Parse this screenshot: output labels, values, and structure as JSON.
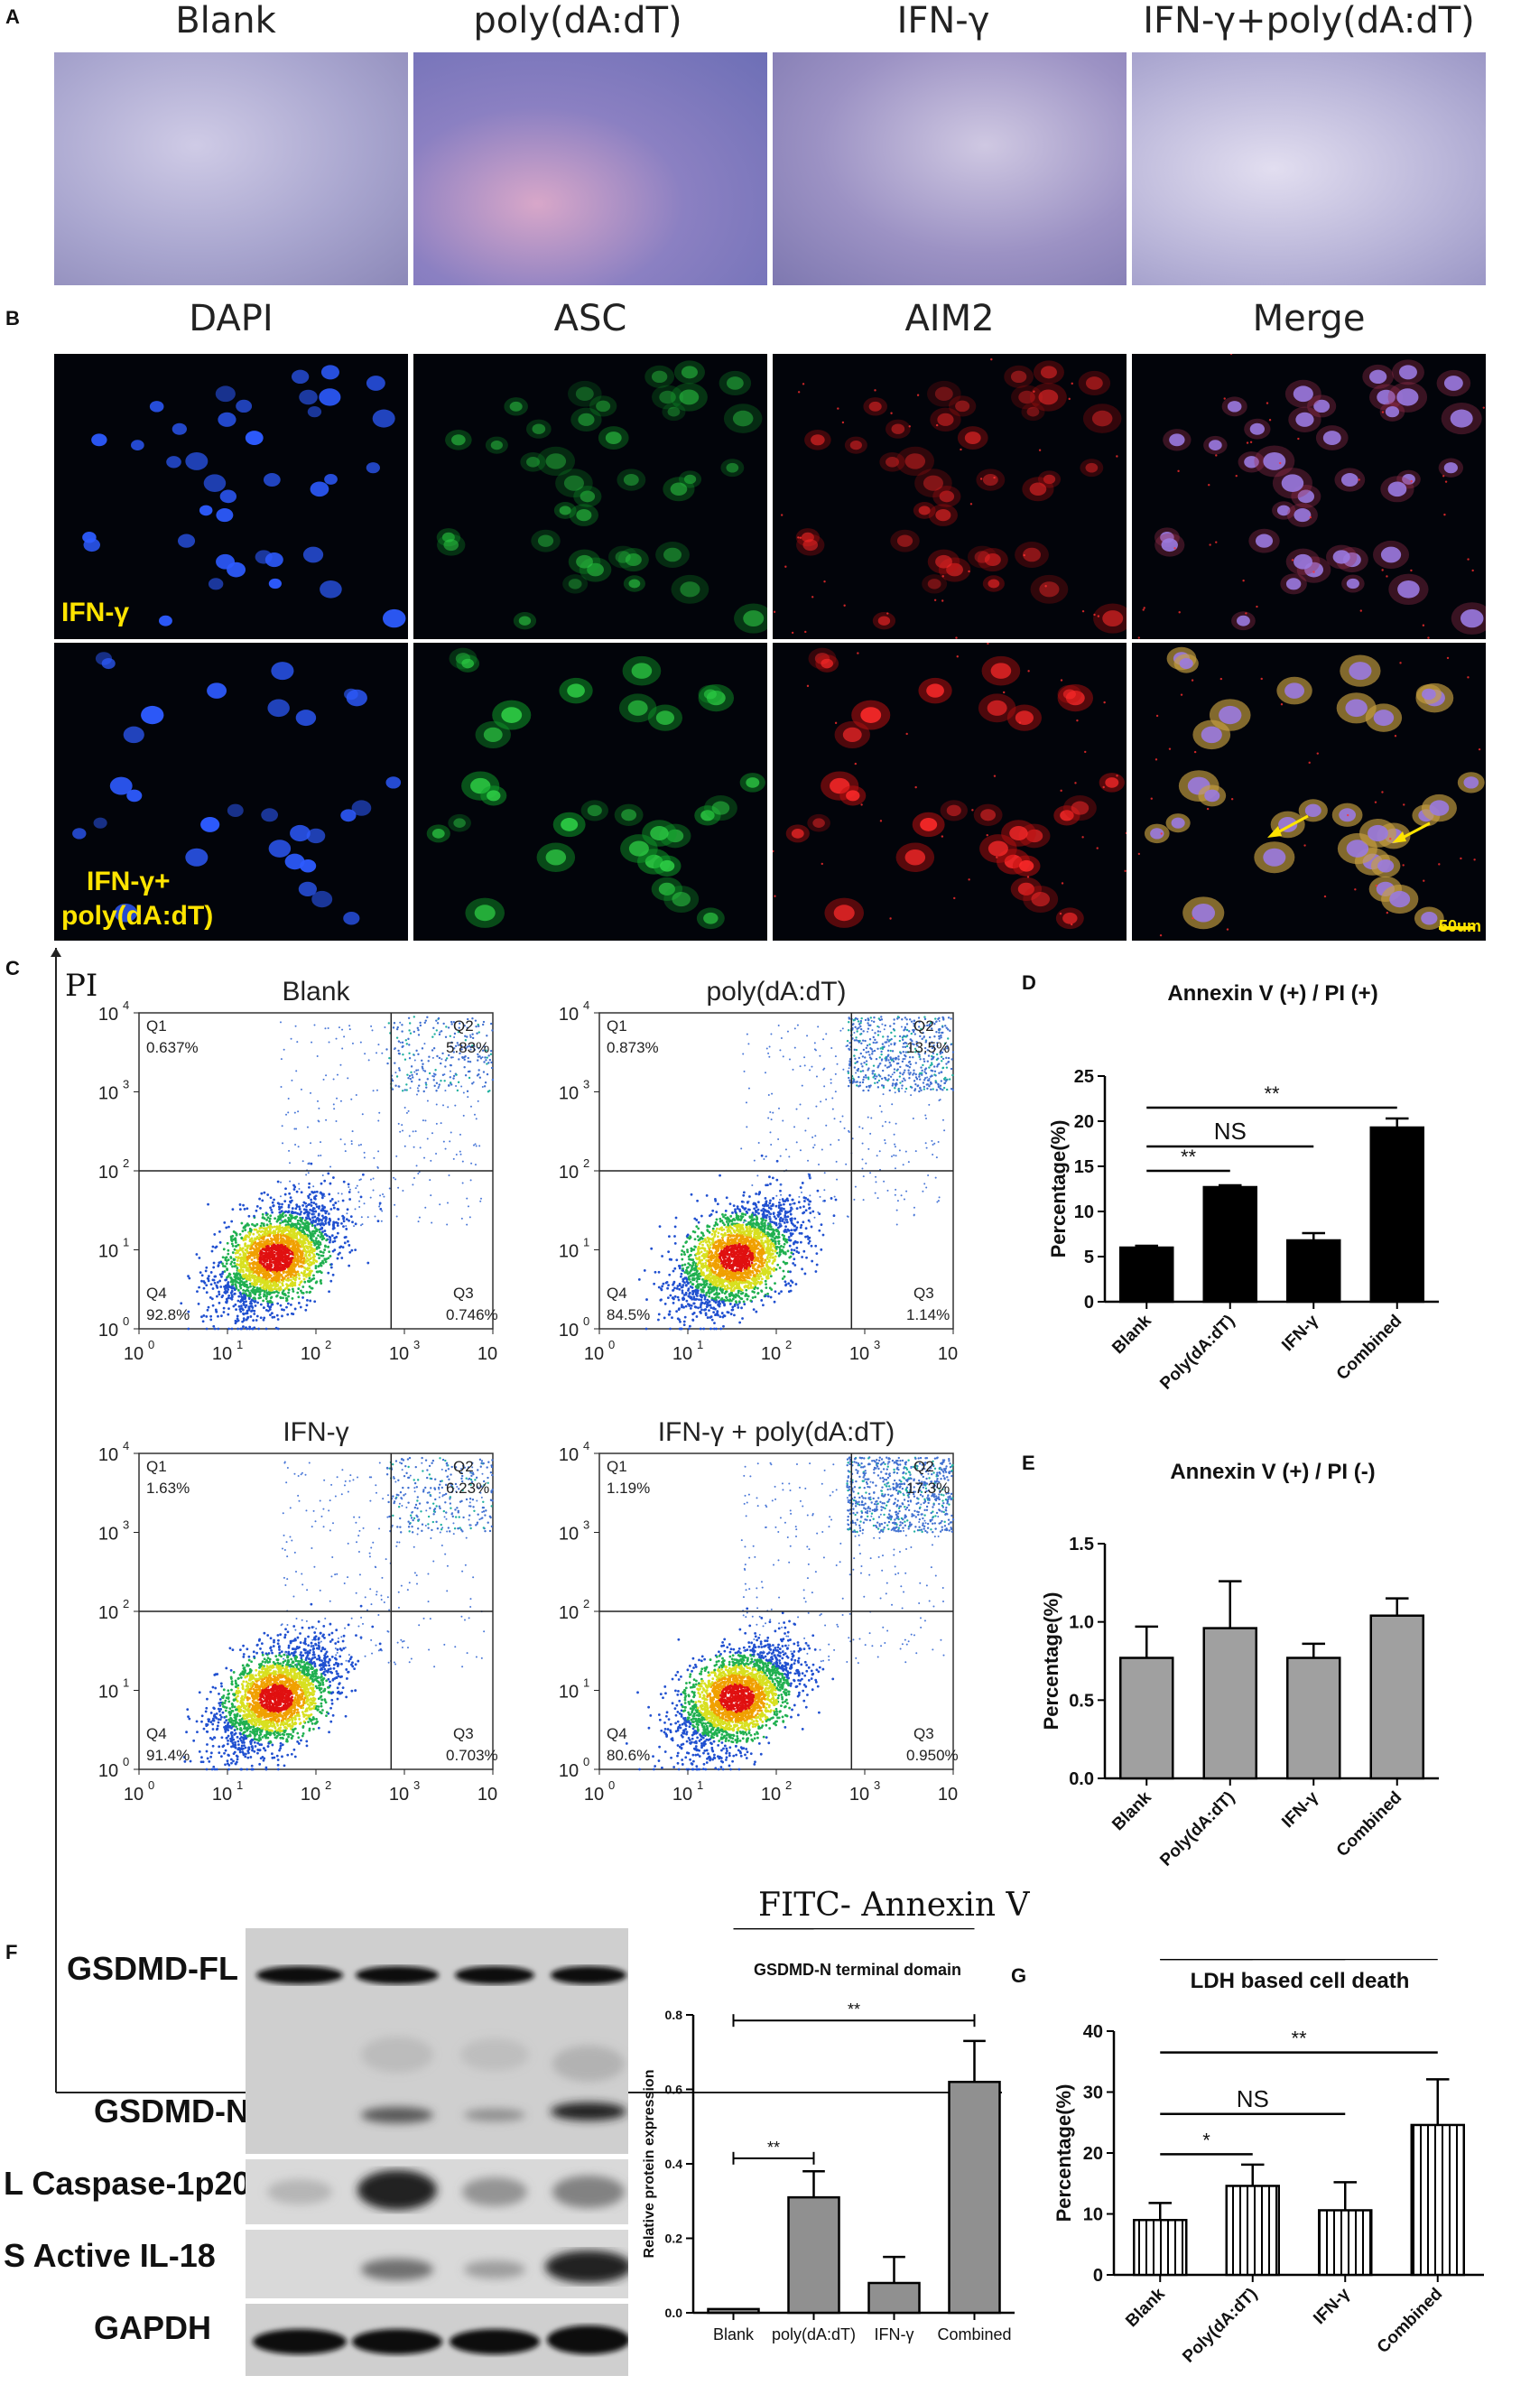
{
  "panels": {
    "A": {
      "label": "A",
      "columns": [
        "Blank",
        "poly(dA:dT)",
        "IFN-γ",
        "IFN-γ+poly(dA:dT)"
      ]
    },
    "B": {
      "label": "B",
      "columns": [
        "DAPI",
        "ASC",
        "AIM2",
        "Merge"
      ],
      "row_labels": [
        "IFN-γ",
        "IFN-γ+",
        "poly(dA:dT)"
      ],
      "scale_bar": "50um"
    },
    "C": {
      "label": "C",
      "y_axis_label": "PI",
      "x_axis_label": "FITC- Annexin V",
      "plots": [
        {
          "title": "Blank",
          "Q1": "0.637%",
          "Q2": "5.83%",
          "Q3": "0.746%",
          "Q4": "92.8%"
        },
        {
          "title": "poly(dA:dT)",
          "Q1": "0.873%",
          "Q2": "13.5%",
          "Q3": "1.14%",
          "Q4": "84.5%"
        },
        {
          "title": "IFN-γ",
          "Q1": "1.63%",
          "Q2": "6.23%",
          "Q3": "0.703%",
          "Q4": "91.4%"
        },
        {
          "title": "IFN-γ + poly(dA:dT)",
          "Q1": "1.19%",
          "Q2": "17.3%",
          "Q3": "0.950%",
          "Q4": "80.6%"
        }
      ],
      "quadrant_names": [
        "Q1",
        "Q2",
        "Q3",
        "Q4"
      ],
      "ticks": [
        "10",
        "10",
        "10",
        "10",
        "10"
      ],
      "tick_exponents": [
        "0",
        "1",
        "2",
        "3",
        "4"
      ]
    },
    "D": {
      "label": "D"
    },
    "E": {
      "label": "E"
    },
    "F": {
      "label": "F",
      "blot_labels": [
        "GSDMD-FL",
        "GSDMD-N",
        "L Caspase-1p20",
        "S  Active IL-18",
        "GAPDH"
      ]
    },
    "G": {
      "label": "G"
    }
  },
  "chart_data": [
    {
      "id": "D",
      "type": "bar",
      "title": "Annexin V (+) / PI (+)",
      "ylabel": "Percentage(%)",
      "categories": [
        "Blank",
        "Poly(dA:dT)",
        "IFN-γ",
        "Combined"
      ],
      "values": [
        6.0,
        12.7,
        6.8,
        19.3
      ],
      "errors": [
        0.2,
        0.2,
        0.8,
        1.0
      ],
      "ylim": [
        0,
        25
      ],
      "yticks": [
        0,
        5,
        10,
        15,
        20,
        25
      ],
      "fill": "#000000",
      "significance": [
        {
          "from": 0,
          "to": 1,
          "label": "**"
        },
        {
          "from": 0,
          "to": 2,
          "label": "NS"
        },
        {
          "from": 0,
          "to": 3,
          "label": "**"
        }
      ]
    },
    {
      "id": "E",
      "type": "bar",
      "title": "Annexin V (+) / PI (-)",
      "ylabel": "Percentage(%)",
      "categories": [
        "Blank",
        "Poly(dA:dT)",
        "IFN-γ",
        "Combined"
      ],
      "values": [
        0.77,
        0.96,
        0.77,
        1.04
      ],
      "errors": [
        0.2,
        0.3,
        0.09,
        0.11
      ],
      "ylim": [
        0,
        1.5
      ],
      "yticks": [
        "0.0",
        "0.5",
        "1.0",
        "1.5"
      ],
      "fill": "#a0a0a0"
    },
    {
      "id": "F",
      "type": "bar",
      "title": "GSDMD-N terminal domain",
      "ylabel": "Relative protein expression",
      "categories": [
        "Blank",
        "poly(dA:dT)",
        "IFN-γ",
        "Combined"
      ],
      "values": [
        0.01,
        0.31,
        0.08,
        0.62
      ],
      "errors": [
        0.0,
        0.07,
        0.07,
        0.11
      ],
      "ylim": [
        0,
        0.8
      ],
      "yticks": [
        "0.0",
        "0.2",
        "0.4",
        "0.6",
        "0.8"
      ],
      "fill": "#909090",
      "significance": [
        {
          "from": 0,
          "to": 1,
          "label": "**"
        },
        {
          "from": 0,
          "to": 3,
          "label": "**"
        }
      ]
    },
    {
      "id": "G",
      "type": "bar",
      "title": "LDH based cell death",
      "ylabel": "Percentage(%)",
      "categories": [
        "Blank",
        "Poly(dA:dT)",
        "IFN-γ",
        "Combined"
      ],
      "values": [
        9.0,
        14.6,
        10.6,
        24.6
      ],
      "errors": [
        2.8,
        3.5,
        4.6,
        7.5
      ],
      "ylim": [
        0,
        40
      ],
      "yticks": [
        0,
        10,
        20,
        30,
        40
      ],
      "fill": "hatch",
      "significance": [
        {
          "from": 0,
          "to": 1,
          "label": "*"
        },
        {
          "from": 0,
          "to": 2,
          "label": "NS"
        },
        {
          "from": 0,
          "to": 3,
          "label": "**"
        }
      ]
    }
  ]
}
